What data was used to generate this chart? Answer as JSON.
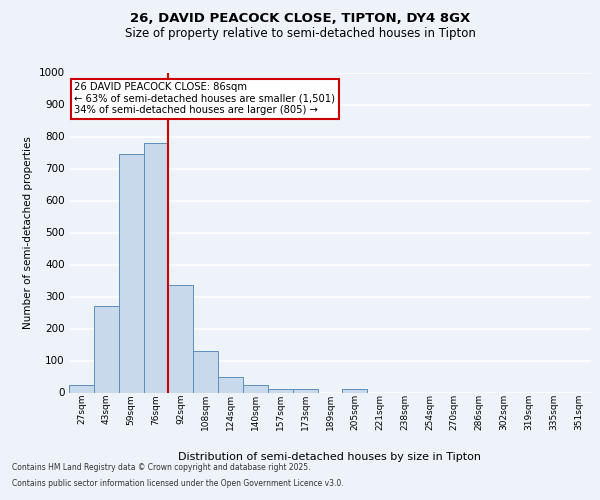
{
  "title_line1": "26, DAVID PEACOCK CLOSE, TIPTON, DY4 8GX",
  "title_line2": "Size of property relative to semi-detached houses in Tipton",
  "xlabel": "Distribution of semi-detached houses by size in Tipton",
  "ylabel": "Number of semi-detached properties",
  "bin_labels": [
    "27sqm",
    "43sqm",
    "59sqm",
    "76sqm",
    "92sqm",
    "108sqm",
    "124sqm",
    "140sqm",
    "157sqm",
    "173sqm",
    "189sqm",
    "205sqm",
    "221sqm",
    "238sqm",
    "254sqm",
    "270sqm",
    "286sqm",
    "302sqm",
    "319sqm",
    "335sqm",
    "351sqm"
  ],
  "bar_values": [
    22,
    270,
    745,
    780,
    335,
    130,
    48,
    22,
    12,
    12,
    0,
    12,
    0,
    0,
    0,
    0,
    0,
    0,
    0,
    0,
    0
  ],
  "bar_color": "#c9d9ec",
  "bar_edge_color": "#5b8fbe",
  "annotation_title": "26 DAVID PEACOCK CLOSE: 86sqm",
  "annotation_line2": "← 63% of semi-detached houses are smaller (1,501)",
  "annotation_line3": "34% of semi-detached houses are larger (805) →",
  "annotation_box_color": "#ffffff",
  "annotation_box_edge": "#cc0000",
  "vline_color": "#cc0000",
  "ylim": [
    0,
    1000
  ],
  "footer_line1": "Contains HM Land Registry data © Crown copyright and database right 2025.",
  "footer_line2": "Contains public sector information licensed under the Open Government Licence v3.0.",
  "background_color": "#eef2f9",
  "plot_bg_color": "#eef2f9",
  "grid_color": "#ffffff"
}
